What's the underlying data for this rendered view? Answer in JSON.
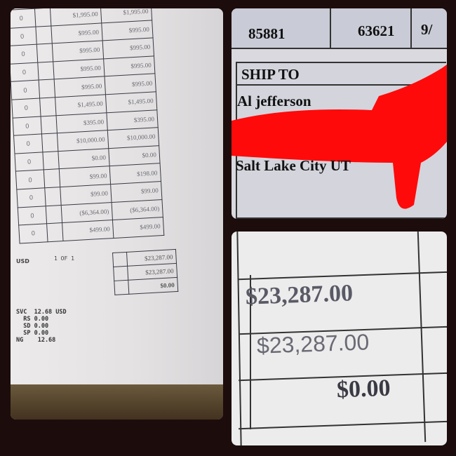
{
  "left_invoice": {
    "rows": [
      {
        "qty": "0",
        "unit": "$1,995.00",
        "total": "$1,995.00"
      },
      {
        "qty": "0",
        "unit": "$995.00",
        "total": "$995.00"
      },
      {
        "qty": "0",
        "unit": "$995.00",
        "total": "$995.00"
      },
      {
        "qty": "0",
        "unit": "$995.00",
        "total": "$995.00"
      },
      {
        "qty": "0",
        "unit": "$995.00",
        "total": "$995.00"
      },
      {
        "qty": "0",
        "unit": "$1,495.00",
        "total": "$1,495.00"
      },
      {
        "qty": "0",
        "unit": "$395.00",
        "total": "$395.00"
      },
      {
        "qty": "0",
        "unit": "$10,000.00",
        "total": "$10,000.00"
      },
      {
        "qty": "0",
        "unit": "$0.00",
        "total": "$0.00"
      },
      {
        "qty": "0",
        "unit": "$99.00",
        "total": "$198.00"
      },
      {
        "qty": "0",
        "unit": "$99.00",
        "total": "$99.00"
      },
      {
        "qty": "0",
        "unit": "($6,364.00)",
        "total": "($6,364.00)"
      },
      {
        "qty": "0",
        "unit": "$499.00",
        "total": "$499.00"
      }
    ],
    "currency": "USD",
    "page": "1 OF 1",
    "totals": [
      "$23,287.00",
      "$23,287.00",
      "$0.00"
    ],
    "receipt": "SVC  12.68 USD\n  RS 0.00\n  SD 0.00\n  SP 0.00\nNG    12.68"
  },
  "header_panel": {
    "ref_no": "85881",
    "customer": "63621",
    "date_partial": "9/",
    "ship_to_label": "SHIP TO",
    "name": "Al jefferson",
    "city": "Salt Lake City UT",
    "redaction_color": "#ff0a0a"
  },
  "totals_panel": {
    "values": [
      "$23,287.00",
      "$23,287.00",
      "$0.00"
    ]
  }
}
